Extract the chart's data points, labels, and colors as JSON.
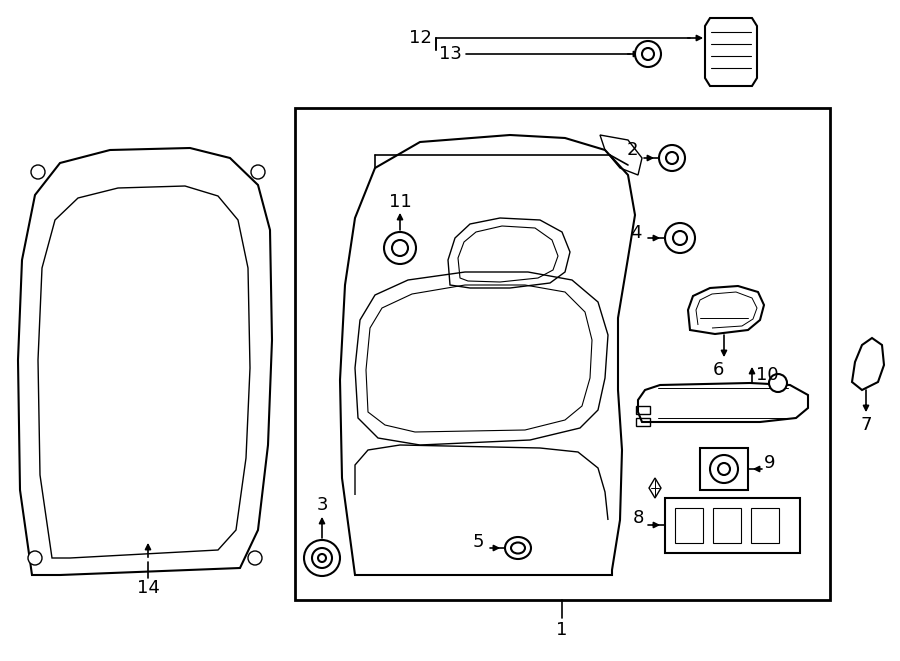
{
  "bg_color": "#ffffff",
  "line_color": "#000000",
  "lw_main": 1.5,
  "lw_thin": 1.0,
  "label_fs": 13
}
